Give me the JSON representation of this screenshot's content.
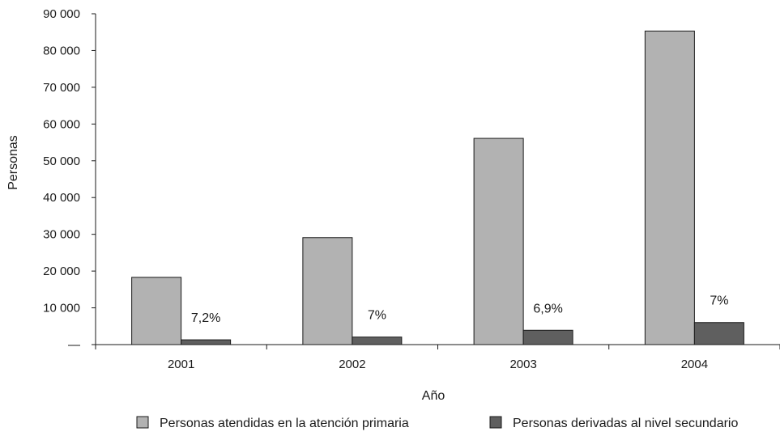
{
  "chart_data": {
    "type": "bar",
    "xlabel": "Año",
    "ylabel": "Personas",
    "categories": [
      "2001",
      "2002",
      "2003",
      "2004"
    ],
    "ylim": [
      0,
      90000
    ],
    "yticks": [
      0,
      10000,
      20000,
      30000,
      40000,
      50000,
      60000,
      70000,
      80000,
      90000
    ],
    "ytick_labels": [
      "—",
      "10 000",
      "20 000",
      "30 000",
      "40 000",
      "50 000",
      "60 000",
      "70 000",
      "80 000",
      "90 000"
    ],
    "series": [
      {
        "name": "Personas atendidas en la atención primaria",
        "values": [
          18300,
          29100,
          56100,
          85300
        ],
        "color": "#b2b2b2"
      },
      {
        "name": "Personas derivadas al nivel secundario",
        "values": [
          1300,
          2050,
          3900,
          6000
        ],
        "color": "#5f5f5f"
      }
    ],
    "annotations": [
      "7,2%",
      "7%",
      "6,9%",
      "7%"
    ],
    "grid": false,
    "legend_position": "bottom"
  }
}
